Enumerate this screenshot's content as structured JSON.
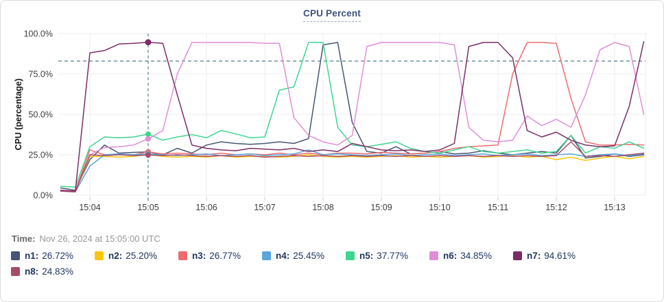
{
  "card": {
    "title": "CPU Percent"
  },
  "time_row": {
    "label": "Time:",
    "value": "Nov 26, 2024 at 15:05:00 UTC"
  },
  "legend": {
    "items": [
      {
        "name": "n1",
        "label": "n1:",
        "value": "26.72%",
        "color": "#475672"
      },
      {
        "name": "n2",
        "label": "n2:",
        "value": "25.20%",
        "color": "#fdc509"
      },
      {
        "name": "n3",
        "label": "n3:",
        "value": "26.77%",
        "color": "#ee6c6e"
      },
      {
        "name": "n4",
        "label": "n4:",
        "value": "25.45%",
        "color": "#57a7db"
      },
      {
        "name": "n5",
        "label": "n5:",
        "value": "37.77%",
        "color": "#3dd68f"
      },
      {
        "name": "n6",
        "label": "n6:",
        "value": "34.85%",
        "color": "#de8ed9"
      },
      {
        "name": "n7",
        "label": "n7:",
        "value": "94.61%",
        "color": "#7c2d66"
      },
      {
        "name": "n8",
        "label": "n8:",
        "value": "24.83%",
        "color": "#a64c69"
      }
    ]
  },
  "chart_data": {
    "type": "line",
    "title": "CPU Percent",
    "xlabel": "",
    "ylabel": "CPU (percentage)",
    "ylim": [
      0,
      100
    ],
    "grid": true,
    "legend_position": "bottom",
    "y_tick_values": [
      0,
      25,
      50,
      75,
      100
    ],
    "y_tick_labels": [
      "0.0%",
      "25.0%",
      "50.0%",
      "75.0%",
      "100.0%"
    ],
    "x_tick_minutes": [
      4,
      5,
      6,
      7,
      8,
      9,
      10,
      11,
      12,
      13
    ],
    "x_tick_labels": [
      "15:04",
      "15:05",
      "15:06",
      "15:07",
      "15:08",
      "15:09",
      "15:10",
      "15:11",
      "15:12",
      "15:13"
    ],
    "threshold_value": 83,
    "crosshair_minute": 5,
    "crosshair_time_label": "15:05",
    "x_minutes": [
      3.5,
      3.75,
      4,
      4.25,
      4.5,
      4.75,
      5,
      5.25,
      5.5,
      5.75,
      6,
      6.25,
      6.5,
      6.75,
      7,
      7.25,
      7.5,
      7.75,
      8,
      8.25,
      8.5,
      8.75,
      9,
      9.25,
      9.5,
      9.75,
      10,
      10.25,
      10.5,
      10.75,
      11,
      11.25,
      11.5,
      11.75,
      12,
      12.25,
      12.5,
      12.75,
      13,
      13.25,
      13.5
    ],
    "series": [
      {
        "name": "n1",
        "color": "#475672",
        "values": [
          4.5,
          3,
          22,
          31,
          26,
          26.5,
          26.72,
          25,
          29,
          26,
          31,
          33,
          32,
          31.5,
          32,
          33,
          32,
          35,
          93,
          94.5,
          45,
          27,
          26,
          30,
          25.5,
          26,
          27,
          25.5,
          26,
          27.5,
          26,
          25,
          26,
          27,
          26,
          37,
          23,
          24,
          25.5,
          24,
          25
        ]
      },
      {
        "name": "n2",
        "color": "#fdc509",
        "values": [
          3,
          2,
          24,
          24,
          23.5,
          24,
          25.2,
          24,
          23.5,
          24,
          23.5,
          24.5,
          23.5,
          24,
          24,
          23.5,
          24,
          25,
          24,
          23.5,
          24,
          23.5,
          24,
          24.5,
          23.5,
          24,
          23.5,
          24,
          24.5,
          23.5,
          24,
          24.5,
          23.5,
          24,
          22,
          23.5,
          21.5,
          23,
          24,
          22.5,
          24
        ]
      },
      {
        "name": "n3",
        "color": "#ee6c6e",
        "values": [
          3,
          2.5,
          28,
          25,
          25.5,
          25,
          26.77,
          25.5,
          26,
          25.5,
          25,
          26,
          25,
          25.5,
          25,
          26,
          25,
          26,
          25,
          26,
          26,
          25.5,
          26.5,
          26,
          25.5,
          26,
          27,
          29,
          30,
          30.5,
          31,
          75,
          94.5,
          94.5,
          94,
          60,
          33,
          31,
          31,
          31.5,
          31
        ]
      },
      {
        "name": "n4",
        "color": "#57a7db",
        "values": [
          3,
          2,
          18,
          25,
          25.5,
          25,
          25.45,
          25,
          24.5,
          25,
          25.5,
          24.5,
          25,
          25.5,
          24.5,
          25,
          25.5,
          28,
          25,
          25.5,
          25,
          24.5,
          25,
          25.5,
          24.5,
          25,
          25.5,
          24.5,
          25,
          25.5,
          24.5,
          25,
          25.5,
          24.5,
          25,
          25.5,
          24,
          25,
          25.5,
          24.5,
          25.5
        ]
      },
      {
        "name": "n5",
        "color": "#3dd68f",
        "values": [
          5.5,
          5,
          30,
          36,
          35.5,
          36,
          37.77,
          34,
          36,
          37.5,
          35.5,
          40,
          38,
          35.5,
          36,
          65,
          67,
          94.5,
          94.5,
          42,
          31,
          30,
          31.5,
          33,
          29,
          27,
          26,
          28,
          30,
          27,
          26,
          27,
          28,
          26,
          27,
          37,
          26,
          30,
          29,
          33,
          29
        ]
      },
      {
        "name": "n6",
        "color": "#de8ed9",
        "values": [
          2.5,
          2,
          25,
          29.5,
          30,
          31,
          34.85,
          40,
          75,
          94.5,
          94.5,
          94.5,
          94.5,
          94.5,
          94,
          94,
          48,
          37,
          33,
          31,
          37,
          92,
          94.5,
          94.5,
          94.5,
          94.5,
          94.5,
          93,
          42,
          34,
          33,
          34,
          49,
          43,
          47,
          42,
          62,
          90,
          94.5,
          92,
          50
        ]
      },
      {
        "name": "n7",
        "color": "#7c2d66",
        "values": [
          3,
          2.5,
          88,
          89.5,
          93.5,
          94,
          94.61,
          94,
          62,
          31,
          29,
          28,
          27.5,
          29,
          28.5,
          28,
          29,
          27,
          28,
          27,
          32,
          30,
          28,
          27.5,
          28,
          27,
          28,
          32,
          92,
          94.5,
          94.5,
          85,
          40,
          36,
          39,
          34,
          31,
          30,
          30.5,
          55,
          95
        ]
      },
      {
        "name": "n8",
        "color": "#a64c69",
        "values": [
          2.5,
          2,
          25,
          24.5,
          25,
          24.5,
          24.83,
          24.5,
          25,
          24.5,
          24,
          24.5,
          24,
          24.5,
          23.5,
          24,
          24.5,
          24,
          24.5,
          24,
          24.5,
          24,
          24.5,
          24,
          24.5,
          24,
          24.5,
          24,
          24.5,
          24,
          24.5,
          24,
          24.5,
          24,
          24.5,
          33,
          24,
          24.5,
          24,
          25,
          26
        ]
      }
    ],
    "colors": {
      "grid": "#ececec",
      "tick_mark": "#d2d2d2",
      "tick_text": "#3b3b3b",
      "axis_title": "#161616",
      "threshold": "#4f7d8e",
      "crosshair": "#4f7d8e"
    }
  }
}
